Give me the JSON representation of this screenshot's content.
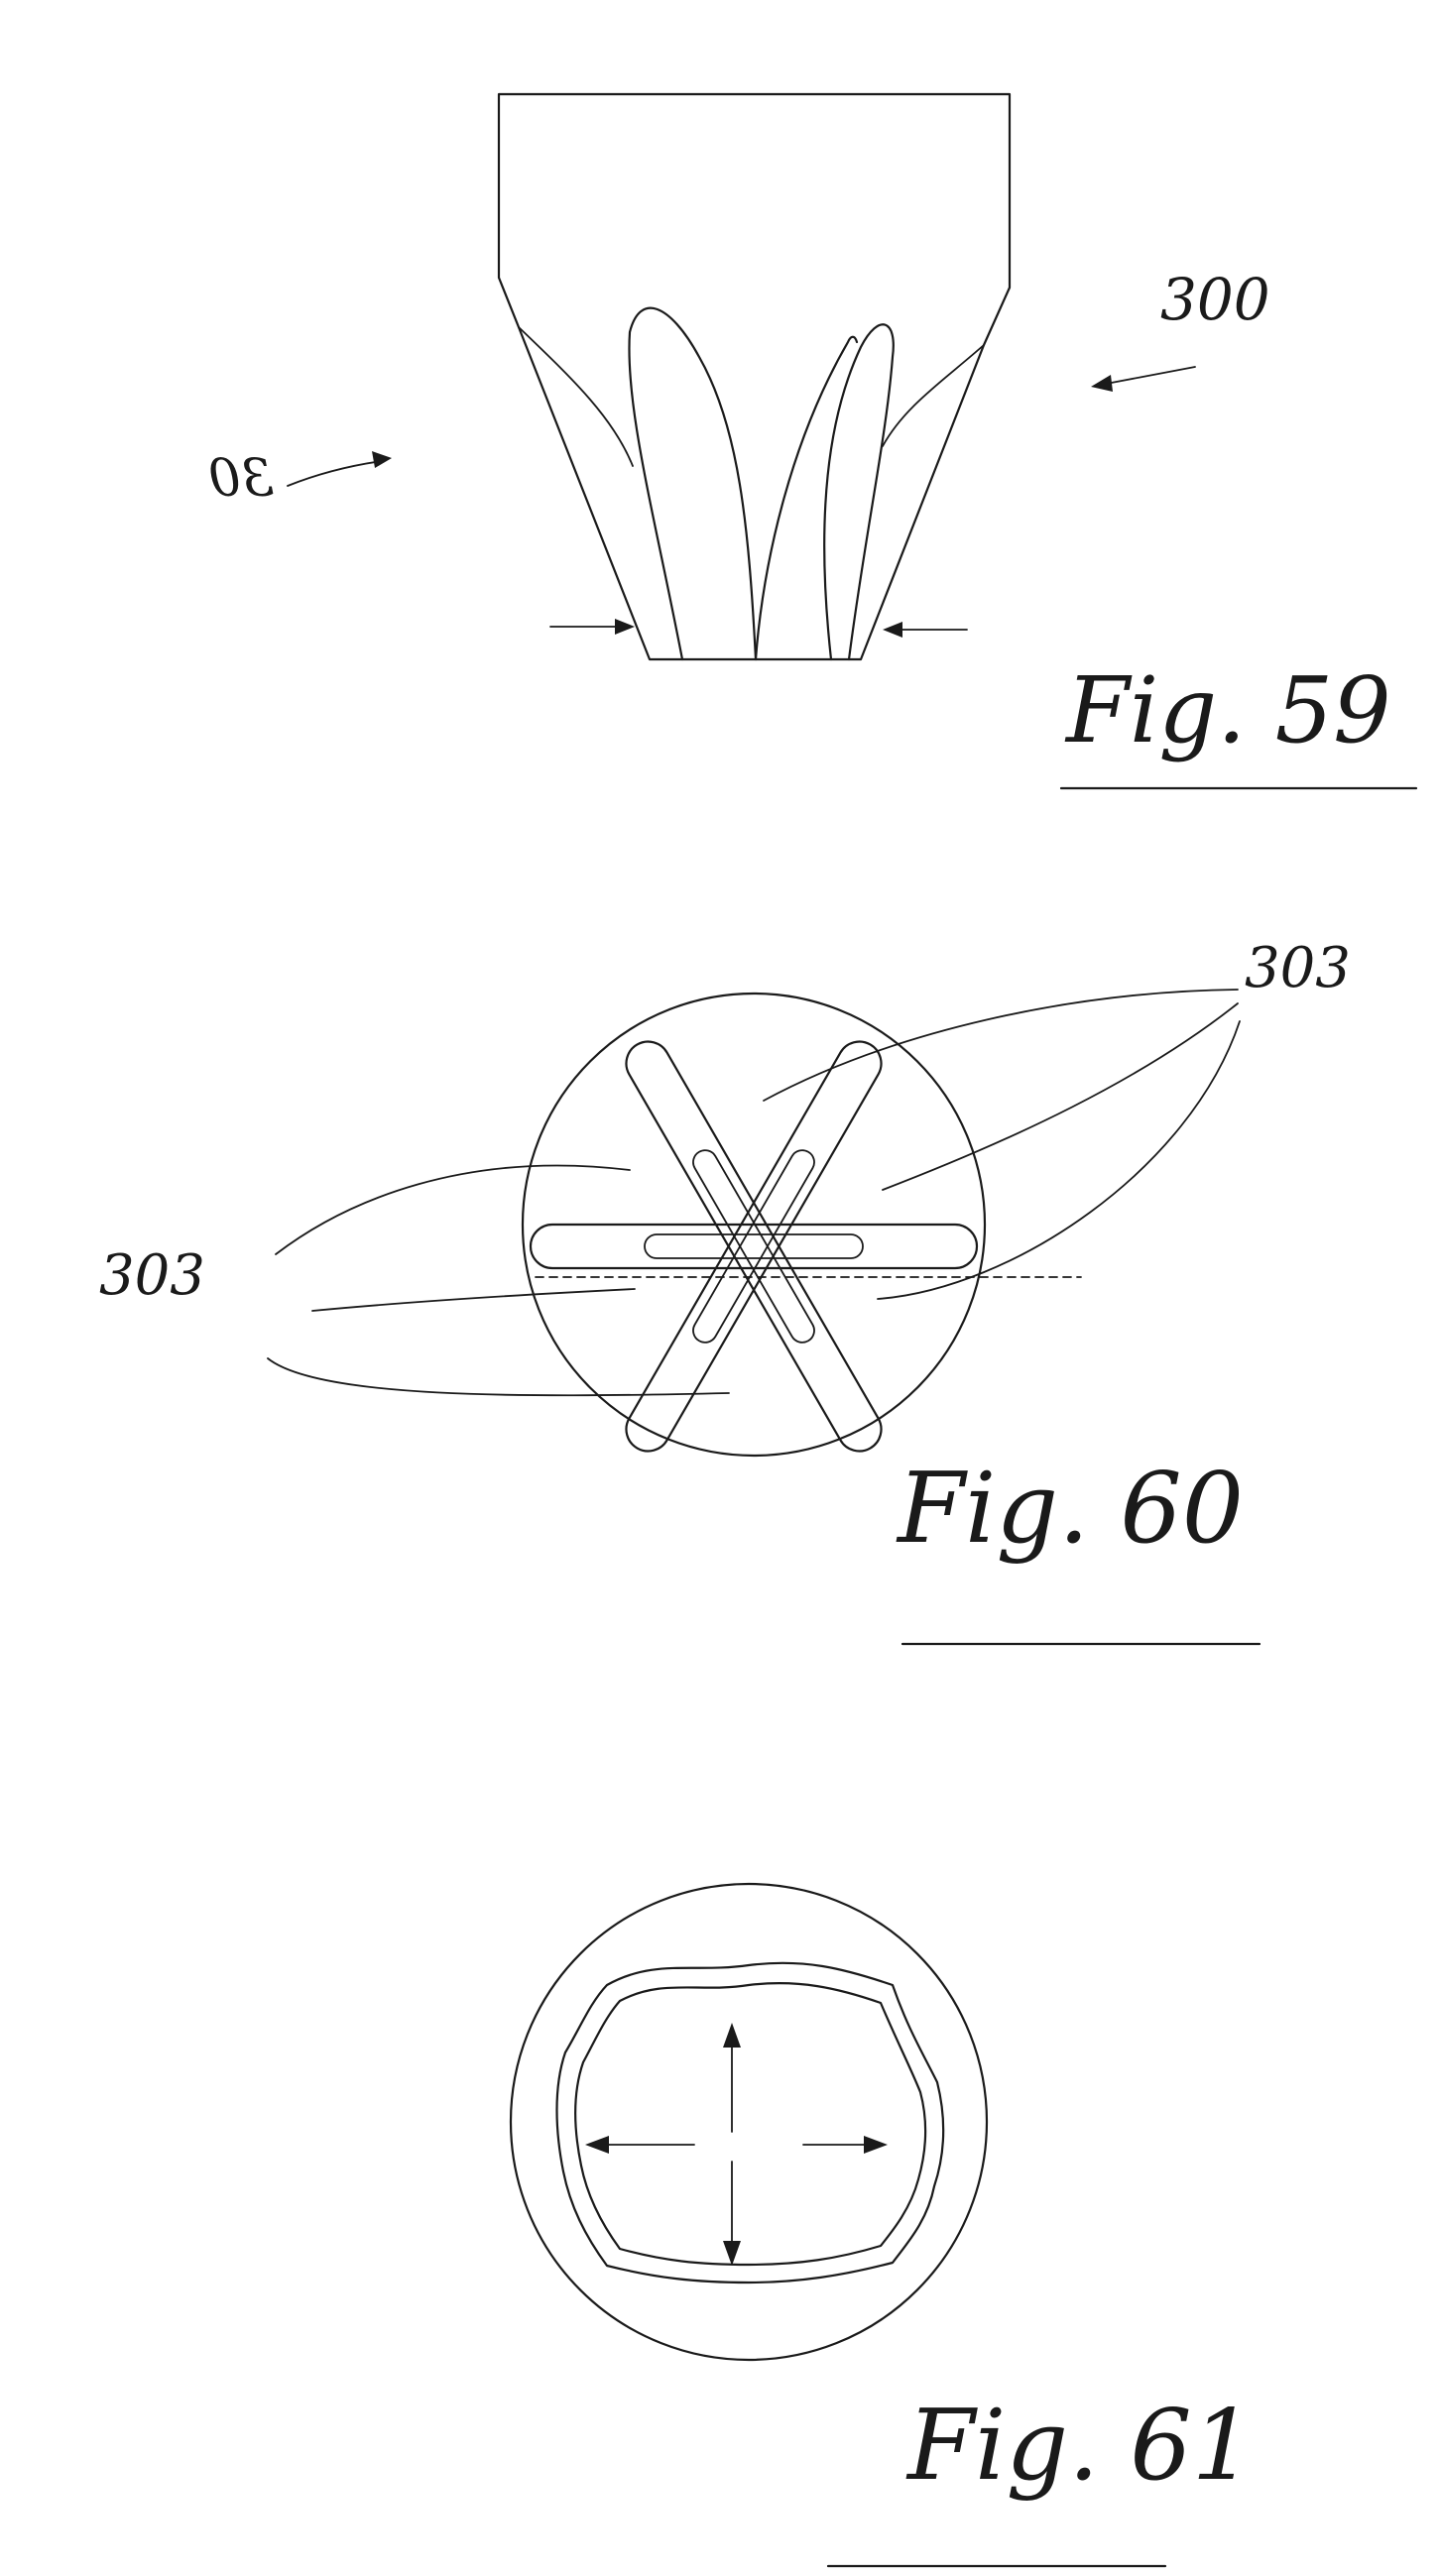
{
  "figures": [
    {
      "id": "fig59",
      "caption": "Fig. 59",
      "labels": [
        "300",
        "30"
      ]
    },
    {
      "id": "fig60",
      "caption": "Fig. 60",
      "labels": [
        "303",
        "303"
      ]
    },
    {
      "id": "fig61",
      "caption": "Fig. 61",
      "labels": []
    }
  ]
}
